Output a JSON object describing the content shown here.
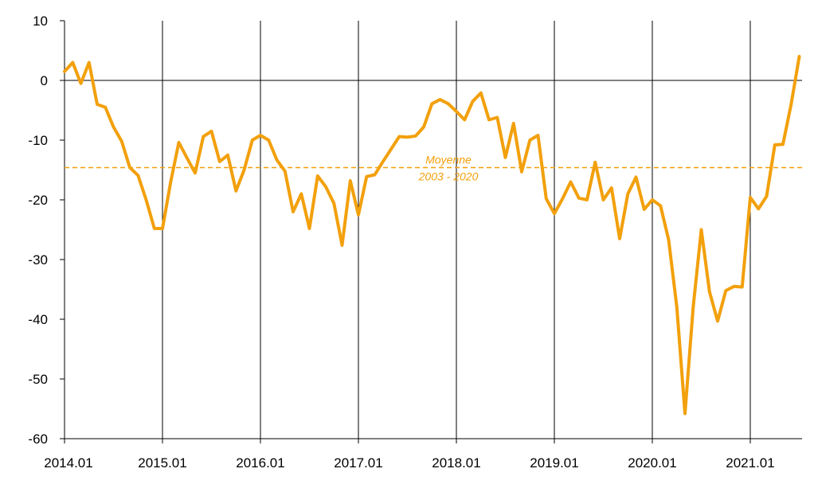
{
  "chart_data": {
    "type": "line",
    "title": "",
    "xlabel": "",
    "ylabel": "",
    "ylim": [
      -60,
      10
    ],
    "yticks": [
      10,
      0,
      -10,
      -20,
      -30,
      -40,
      -50,
      -60
    ],
    "xticks": [
      "2014.01",
      "2015.01",
      "2016.01",
      "2017.01",
      "2018.01",
      "2019.01",
      "2020.01",
      "2021.01"
    ],
    "x_start": "2014.01",
    "grid": "vertical lines at each year",
    "colors": {
      "series": "#F2A00C",
      "axis": "#000000"
    },
    "reference_line": {
      "value": -14.6,
      "label_line1": "Moyenne",
      "label_line2": "2003 - 2020"
    },
    "series": [
      {
        "values": [
          1.5,
          3.0,
          -0.5,
          3.0,
          -4.0,
          -4.5,
          -7.8,
          -10.2,
          -14.6,
          -15.9,
          -20.0,
          -24.8,
          -24.8,
          -17.0,
          -10.4,
          -13.0,
          -15.5,
          -9.4,
          -8.5,
          -13.6,
          -12.5,
          -18.5,
          -15.0,
          -10.0,
          -9.2,
          -10.0,
          -13.3,
          -15.2,
          -22.0,
          -19.0,
          -24.8,
          -16.0,
          -17.8,
          -20.6,
          -27.6,
          -16.8,
          -22.5,
          -16.1,
          -15.8,
          -13.6,
          -11.5,
          -9.4,
          -9.5,
          -9.3,
          -7.8,
          -3.9,
          -3.2,
          -3.9,
          -5.2,
          -6.6,
          -3.5,
          -2.1,
          -6.6,
          -6.2,
          -12.9,
          -7.2,
          -15.3,
          -10.0,
          -9.2,
          -19.8,
          -22.3,
          -19.8,
          -17.0,
          -19.7,
          -20.0,
          -13.7,
          -20.0,
          -18.0,
          -26.5,
          -19.0,
          -16.2,
          -21.6,
          -20.0,
          -21.0,
          -26.7,
          -38.0,
          -55.8,
          -38.0,
          -25.0,
          -35.4,
          -40.3,
          -35.2,
          -34.5,
          -34.6,
          -19.6,
          -21.5,
          -19.4,
          -10.8,
          -10.7,
          -4.0,
          4.0
        ]
      }
    ]
  }
}
